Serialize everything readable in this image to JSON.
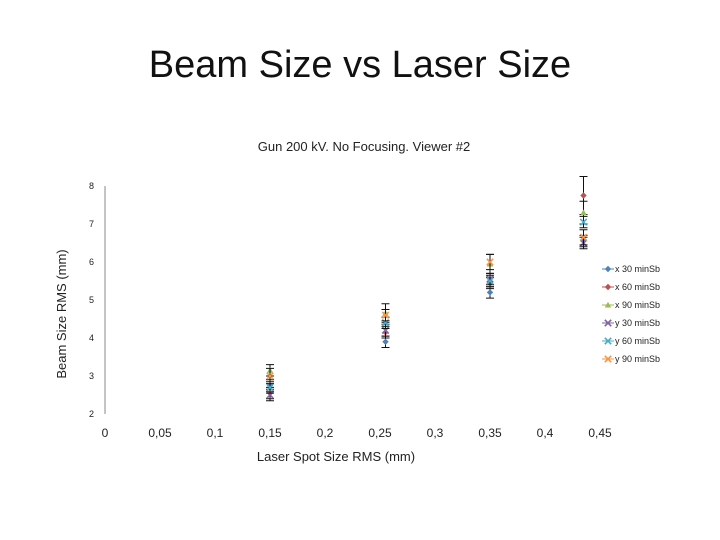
{
  "slide": {
    "title": "Beam Size vs Laser Size"
  },
  "chart_data": {
    "type": "scatter",
    "title": "Gun 200 kV. No Focusing. Viewer #2",
    "xlabel": "Laser Spot Size RMS (mm)",
    "ylabel": "Beam Size RMS (mm)",
    "xlim": [
      0,
      0.45
    ],
    "ylim": [
      2,
      8
    ],
    "x_ticks": [
      "0",
      "0,05",
      "0,1",
      "0,15",
      "0,2",
      "0,25",
      "0,3",
      "0,35",
      "0,4",
      "0,45"
    ],
    "y_ticks": [
      "2",
      "3",
      "4",
      "5",
      "6",
      "7",
      "8"
    ],
    "legend_position": "right",
    "grid": false,
    "series": [
      {
        "name": "x 30 minSb",
        "color": "#4f81bd",
        "marker": "diamond",
        "x": [
          0.15,
          0.255,
          0.35,
          0.435
        ],
        "y": [
          2.75,
          3.9,
          5.2,
          6.55
        ],
        "err": [
          0.15,
          0.15,
          0.15,
          0.15
        ]
      },
      {
        "name": "x 60 minSb",
        "color": "#c0504d",
        "marker": "diamond",
        "x": [
          0.15,
          0.255,
          0.35,
          0.435
        ],
        "y": [
          2.55,
          4.15,
          5.45,
          7.75
        ],
        "err": [
          0.15,
          0.15,
          0.15,
          0.5
        ]
      },
      {
        "name": "x 90 minSb",
        "color": "#9bbb59",
        "marker": "triangle",
        "x": [
          0.15,
          0.255,
          0.35,
          0.435
        ],
        "y": [
          3.15,
          4.65,
          5.95,
          7.3
        ],
        "err": [
          0.15,
          0.25,
          0.25,
          0.3
        ]
      },
      {
        "name": "y 30 minSb",
        "color": "#8064a2",
        "marker": "x",
        "x": [
          0.15,
          0.255,
          0.35,
          0.435
        ],
        "y": [
          2.5,
          4.2,
          5.55,
          6.5
        ],
        "err": [
          0.15,
          0.15,
          0.15,
          0.15
        ]
      },
      {
        "name": "y 60 minSb",
        "color": "#4bacc6",
        "marker": "x",
        "x": [
          0.15,
          0.255,
          0.35,
          0.435
        ],
        "y": [
          2.7,
          4.4,
          5.5,
          7.05
        ],
        "err": [
          0.15,
          0.15,
          0.15,
          0.15
        ]
      },
      {
        "name": "y 90 minSb",
        "color": "#f79646",
        "marker": "x",
        "x": [
          0.15,
          0.255,
          0.35,
          0.435
        ],
        "y": [
          3.0,
          4.6,
          6.0,
          6.65
        ],
        "err": [
          0.2,
          0.15,
          0.2,
          0.2
        ]
      }
    ]
  }
}
